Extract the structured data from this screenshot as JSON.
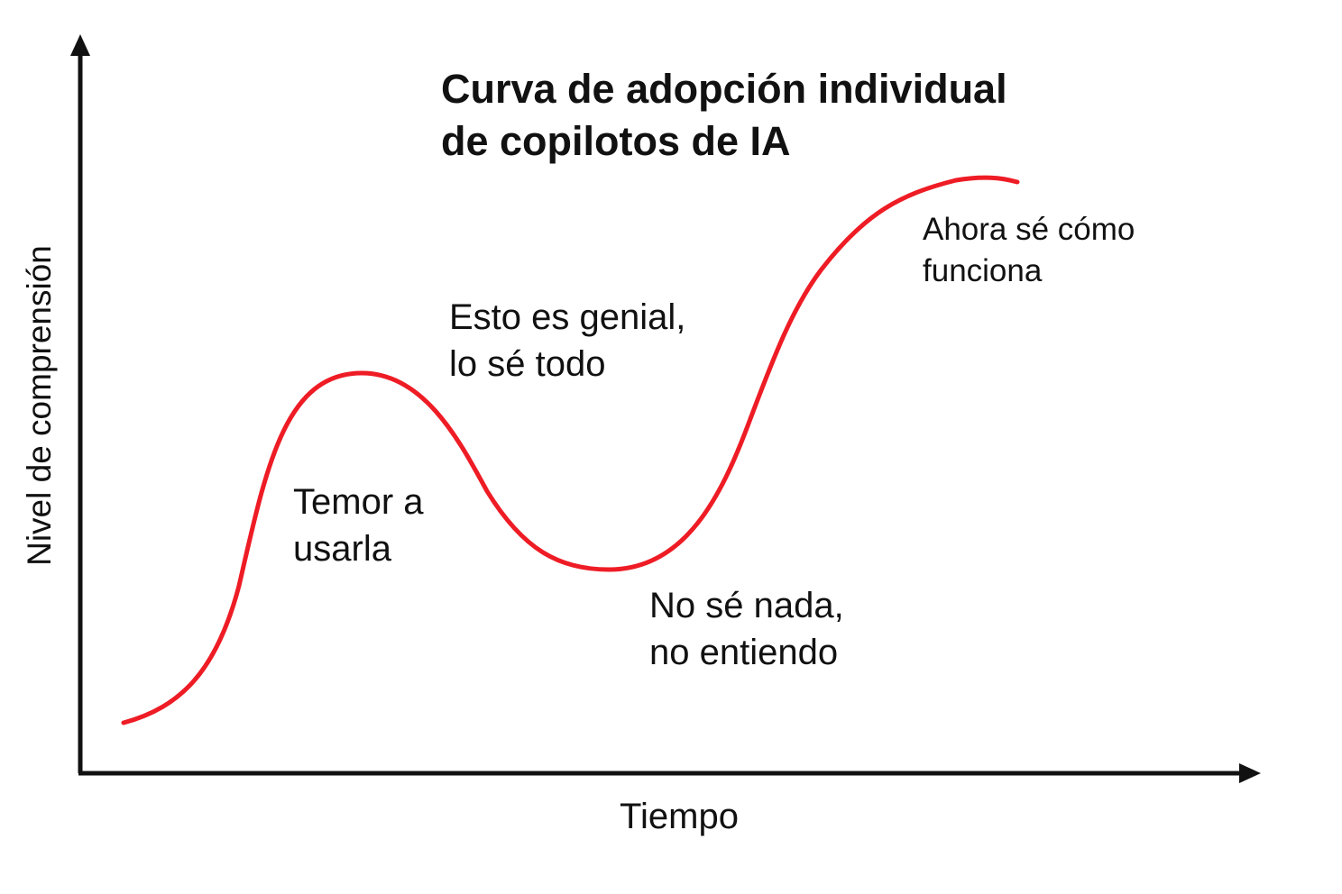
{
  "title": {
    "line1": "Curva de adopción individual",
    "line2": "de copilotos de IA"
  },
  "axes": {
    "x_label": "Tiempo",
    "y_label": "Nivel de comprensión"
  },
  "annotations": {
    "fear": {
      "line1": "Temor a",
      "line2": "usarla"
    },
    "peak": {
      "line1": "Esto es genial,",
      "line2": "lo sé todo"
    },
    "trough": {
      "line1": "No sé nada,",
      "line2": "no entiendo"
    },
    "mastery": {
      "line1": "Ahora sé cómo",
      "line2": "funciona"
    }
  },
  "colors": {
    "curve": "#ee1c25",
    "axis": "#111111",
    "text": "#111111"
  }
}
